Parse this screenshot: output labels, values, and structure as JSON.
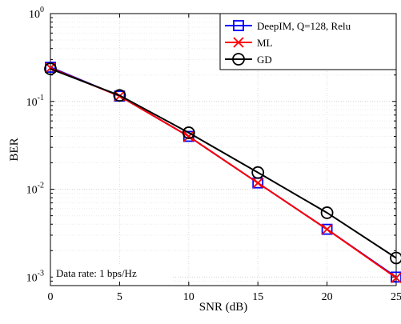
{
  "chart_data": {
    "type": "line",
    "title": "",
    "xlabel": "SNR (dB)",
    "ylabel": "BER",
    "xlim": [
      0,
      25
    ],
    "ylim": [
      0.0008,
      1
    ],
    "y_scale": "log",
    "grid": true,
    "legend_placement": "top-right",
    "x_ticks": [
      0,
      5,
      10,
      15,
      20,
      25
    ],
    "x_tick_labels": [
      "0",
      "5",
      "10",
      "15",
      "20",
      "25"
    ],
    "y_ticks": [
      0.001,
      0.01,
      0.1,
      1
    ],
    "y_tick_labels": [
      {
        "base": "10",
        "exp": "-3"
      },
      {
        "base": "10",
        "exp": "-2"
      },
      {
        "base": "10",
        "exp": "-1"
      },
      {
        "base": "10",
        "exp": "0"
      }
    ],
    "annotation": "Data rate: 1 bps/Hz",
    "series": [
      {
        "name": "DeepIM, Q=128, Relu",
        "color": "#0000ff",
        "marker": "square",
        "x": [
          0,
          5,
          10,
          15,
          20,
          25
        ],
        "y": [
          0.245,
          0.115,
          0.04,
          0.0118,
          0.0035,
          0.001
        ]
      },
      {
        "name": "ML",
        "color": "#ff0000",
        "marker": "x",
        "x": [
          0,
          5,
          10,
          15,
          20,
          25
        ],
        "y": [
          0.24,
          0.115,
          0.04,
          0.0118,
          0.0035,
          0.00098
        ]
      },
      {
        "name": "GD",
        "color": "#000000",
        "marker": "circle",
        "x": [
          0,
          5,
          10,
          15,
          20,
          25
        ],
        "y": [
          0.235,
          0.117,
          0.044,
          0.0155,
          0.0054,
          0.00165
        ]
      }
    ]
  }
}
